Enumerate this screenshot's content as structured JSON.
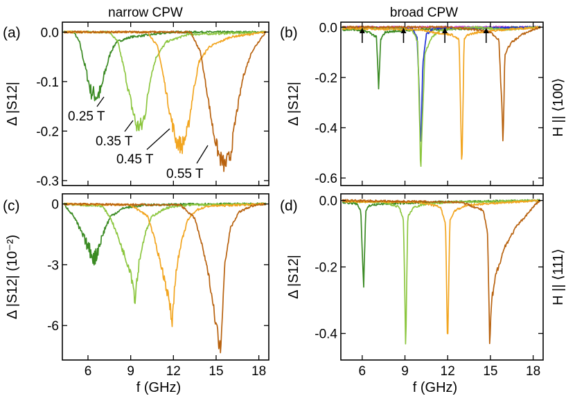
{
  "titles": {
    "left": "narrow CPW",
    "right": "broad CPW"
  },
  "field_labels": {
    "top": "H || ⟨100⟩",
    "bottom": "H || ⟨111⟩"
  },
  "colors": {
    "dark_green": "#3a8a23",
    "light_green": "#8cc63f",
    "orange": "#f2a51f",
    "brown": "#b8620f",
    "blue": "#1f2fd6",
    "magenta": "#cc44cc"
  },
  "chart_data": [
    {
      "id": "a",
      "panel_label": "(a)",
      "type": "line",
      "xlabel": "",
      "ylabel": "Δ |S12|",
      "xlim": [
        4.2,
        18.7
      ],
      "ylim": [
        -0.31,
        0.02
      ],
      "xticks": [],
      "yticks": [
        {
          "v": 0.0,
          "label": "0.0"
        },
        {
          "v": -0.1,
          "label": "-0.1"
        },
        {
          "v": -0.2,
          "label": "-0.2"
        },
        {
          "v": -0.3,
          "label": "-0.3"
        }
      ],
      "annotations": [
        "0.25 T",
        "0.35 T",
        "0.45 T",
        "0.55 T"
      ],
      "series": [
        {
          "label": "0.25 T",
          "color": "dark_green",
          "x": [
            4.3,
            5.0,
            5.4,
            5.8,
            6.2,
            6.6,
            6.9,
            7.2,
            7.6,
            8.0,
            9.0,
            12.0,
            18.5
          ],
          "y": [
            0.0,
            0.0,
            -0.02,
            -0.07,
            -0.12,
            -0.13,
            -0.12,
            -0.08,
            -0.04,
            -0.02,
            -0.01,
            0.0,
            0.0
          ]
        },
        {
          "label": "0.35 T",
          "color": "light_green",
          "x": [
            4.3,
            7.5,
            8.1,
            8.5,
            9.0,
            9.4,
            9.8,
            10.1,
            10.4,
            10.8,
            11.5,
            13.0,
            18.5
          ],
          "y": [
            0.0,
            0.0,
            -0.02,
            -0.07,
            -0.14,
            -0.19,
            -0.19,
            -0.15,
            -0.09,
            -0.05,
            -0.02,
            -0.005,
            0.0
          ]
        },
        {
          "label": "0.45 T",
          "color": "orange",
          "x": [
            4.3,
            10.2,
            10.9,
            11.3,
            11.8,
            12.2,
            12.6,
            13.0,
            13.4,
            13.8,
            14.5,
            16.0,
            18.5
          ],
          "y": [
            0.0,
            0.0,
            -0.03,
            -0.09,
            -0.17,
            -0.22,
            -0.23,
            -0.2,
            -0.12,
            -0.06,
            -0.03,
            -0.01,
            0.0
          ]
        },
        {
          "label": "0.55 T",
          "color": "brown",
          "x": [
            4.3,
            13.2,
            13.9,
            14.3,
            14.8,
            15.2,
            15.6,
            16.0,
            16.4,
            16.9,
            17.5,
            18.2,
            18.5
          ],
          "y": [
            0.0,
            0.0,
            -0.04,
            -0.11,
            -0.2,
            -0.25,
            -0.27,
            -0.25,
            -0.17,
            -0.09,
            -0.04,
            -0.01,
            0.0
          ]
        }
      ]
    },
    {
      "id": "b",
      "panel_label": "(b)",
      "type": "line",
      "xlabel": "",
      "ylabel": "Δ |S12|",
      "xlim": [
        4.5,
        18.7
      ],
      "ylim": [
        -0.63,
        0.02
      ],
      "xticks": [],
      "yticks": [
        {
          "v": 0.0,
          "label": "0.0"
        },
        {
          "v": -0.2,
          "label": "-0.2"
        },
        {
          "v": -0.4,
          "label": "-0.4"
        },
        {
          "v": -0.6,
          "label": "-0.6"
        }
      ],
      "arrows_at_x": [
        6.0,
        8.9,
        11.8,
        14.7
      ],
      "series": [
        {
          "color": "magenta",
          "x": [
            4.6,
            18.5
          ],
          "y": [
            0.0,
            0.0
          ]
        },
        {
          "color": "dark_green",
          "x": [
            4.6,
            5.5,
            6.5,
            7.0,
            7.15,
            7.3,
            7.6,
            8.5,
            10.0,
            12.0,
            14.0,
            18.5
          ],
          "y": [
            -0.01,
            -0.01,
            -0.02,
            -0.04,
            -0.25,
            -0.05,
            -0.02,
            -0.015,
            -0.01,
            -0.008,
            -0.005,
            0.0
          ]
        },
        {
          "color": "blue",
          "x": [
            4.6,
            9.5,
            9.85,
            10.0,
            10.1,
            10.25,
            10.5,
            11.0,
            18.5
          ],
          "y": [
            0.0,
            -0.005,
            -0.04,
            -0.25,
            -0.52,
            -0.15,
            -0.03,
            -0.005,
            0.0
          ]
        },
        {
          "color": "light_green",
          "x": [
            4.6,
            9.0,
            9.6,
            9.9,
            10.1,
            10.4,
            10.9,
            11.3,
            11.7,
            12.5,
            14.0,
            16.0,
            18.5
          ],
          "y": [
            -0.005,
            -0.005,
            -0.02,
            -0.06,
            -0.56,
            -0.1,
            -0.04,
            -0.02,
            -0.01,
            -0.005,
            0.0,
            -0.01,
            0.0
          ]
        },
        {
          "color": "orange",
          "x": [
            4.6,
            10.0,
            11.0,
            12.3,
            12.8,
            13.0,
            13.15,
            13.4,
            14.2,
            16.0,
            18.5
          ],
          "y": [
            -0.005,
            -0.01,
            -0.02,
            -0.03,
            -0.05,
            -0.59,
            -0.05,
            -0.03,
            -0.02,
            -0.01,
            0.0
          ]
        },
        {
          "color": "brown",
          "x": [
            4.6,
            12.0,
            14.0,
            15.0,
            15.6,
            15.9,
            16.0,
            16.15,
            16.5,
            17.2,
            18.0,
            18.5
          ],
          "y": [
            0.0,
            0.0,
            -0.01,
            -0.02,
            -0.05,
            -0.46,
            -0.12,
            -0.09,
            -0.06,
            -0.03,
            -0.01,
            0.0
          ]
        }
      ]
    },
    {
      "id": "c",
      "panel_label": "(c)",
      "type": "line",
      "xlabel": "f (GHz)",
      "ylabel": "Δ |S12| (10⁻²)",
      "xlim": [
        4.2,
        18.7
      ],
      "ylim": [
        -7.7,
        0.5
      ],
      "xticks": [
        {
          "v": 6,
          "label": "6"
        },
        {
          "v": 9,
          "label": "9"
        },
        {
          "v": 12,
          "label": "12"
        },
        {
          "v": 15,
          "label": "15"
        },
        {
          "v": 18,
          "label": "18"
        }
      ],
      "yticks": [
        {
          "v": 0,
          "label": "0"
        },
        {
          "v": -3,
          "label": "-3"
        },
        {
          "v": -6,
          "label": "-6"
        }
      ],
      "series": [
        {
          "color": "dark_green",
          "x": [
            4.3,
            5.0,
            5.4,
            5.8,
            6.2,
            6.5,
            6.8,
            7.2,
            7.6,
            8.5,
            10.0,
            14.0,
            18.5
          ],
          "y": [
            0.0,
            -0.6,
            -1.2,
            -1.8,
            -2.4,
            -2.7,
            -2.0,
            -1.2,
            -0.6,
            -0.2,
            -0.05,
            0.0,
            0.0
          ]
        },
        {
          "color": "light_green",
          "x": [
            4.3,
            7.0,
            7.6,
            8.1,
            8.6,
            9.0,
            9.3,
            9.6,
            10.0,
            10.5,
            11.5,
            13.0,
            18.5
          ],
          "y": [
            0.0,
            -0.1,
            -0.7,
            -1.6,
            -2.6,
            -3.3,
            -4.6,
            -2.8,
            -1.5,
            -0.6,
            -0.2,
            -0.05,
            0.0
          ]
        },
        {
          "color": "orange",
          "x": [
            4.3,
            9.0,
            10.2,
            10.7,
            11.2,
            11.6,
            11.9,
            12.2,
            12.6,
            13.0,
            13.6,
            14.5,
            18.5
          ],
          "y": [
            0.0,
            -0.05,
            -0.6,
            -1.8,
            -3.2,
            -4.4,
            -5.8,
            -3.2,
            -1.8,
            -0.8,
            -0.3,
            -0.1,
            0.0
          ]
        },
        {
          "color": "brown",
          "x": [
            4.3,
            12.5,
            13.5,
            14.0,
            14.5,
            14.8,
            15.1,
            15.3,
            15.6,
            16.0,
            16.6,
            17.5,
            18.5
          ],
          "y": [
            0.0,
            -0.05,
            -0.7,
            -2.0,
            -3.6,
            -5.0,
            -6.4,
            -7.3,
            -3.0,
            -1.2,
            -0.4,
            -0.1,
            0.0
          ]
        }
      ]
    },
    {
      "id": "d",
      "panel_label": "(d)",
      "type": "line",
      "xlabel": "f (GHz)",
      "ylabel": "Δ |S12|",
      "xlim": [
        4.5,
        18.7
      ],
      "ylim": [
        -0.48,
        0.02
      ],
      "xticks": [
        {
          "v": 6,
          "label": "6"
        },
        {
          "v": 9,
          "label": "9"
        },
        {
          "v": 12,
          "label": "12"
        },
        {
          "v": 15,
          "label": "15"
        },
        {
          "v": 18,
          "label": "18"
        }
      ],
      "yticks": [
        {
          "v": 0.0,
          "label": "0.0"
        },
        {
          "v": -0.2,
          "label": "-0.2"
        },
        {
          "v": -0.4,
          "label": "-0.4"
        }
      ],
      "series": [
        {
          "color": "dark_green",
          "x": [
            4.6,
            5.6,
            5.9,
            6.1,
            6.25,
            6.5,
            7.5,
            9.0,
            11.0,
            14.0,
            18.5
          ],
          "y": [
            -0.005,
            -0.01,
            -0.03,
            -0.26,
            -0.03,
            -0.015,
            -0.01,
            -0.008,
            -0.005,
            -0.003,
            0.0
          ]
        },
        {
          "color": "light_green",
          "x": [
            4.6,
            7.5,
            8.6,
            8.9,
            9.05,
            9.2,
            9.6,
            10.5,
            12.0,
            15.0,
            18.5
          ],
          "y": [
            -0.003,
            -0.005,
            -0.02,
            -0.06,
            -0.44,
            -0.05,
            -0.02,
            -0.01,
            -0.005,
            -0.003,
            0.0
          ]
        },
        {
          "color": "orange",
          "x": [
            4.6,
            10.0,
            11.5,
            11.85,
            12.0,
            12.15,
            12.5,
            13.3,
            14.5,
            16.5,
            18.5
          ],
          "y": [
            -0.003,
            -0.005,
            -0.02,
            -0.07,
            -0.45,
            -0.06,
            -0.03,
            -0.015,
            -0.01,
            -0.005,
            0.0
          ]
        },
        {
          "color": "brown",
          "x": [
            4.6,
            13.0,
            14.5,
            14.8,
            14.95,
            15.1,
            15.4,
            16.0,
            16.8,
            17.6,
            18.2,
            18.5
          ],
          "y": [
            0.0,
            -0.005,
            -0.03,
            -0.1,
            -0.43,
            -0.3,
            -0.22,
            -0.14,
            -0.08,
            -0.04,
            -0.01,
            0.0
          ]
        }
      ]
    }
  ]
}
